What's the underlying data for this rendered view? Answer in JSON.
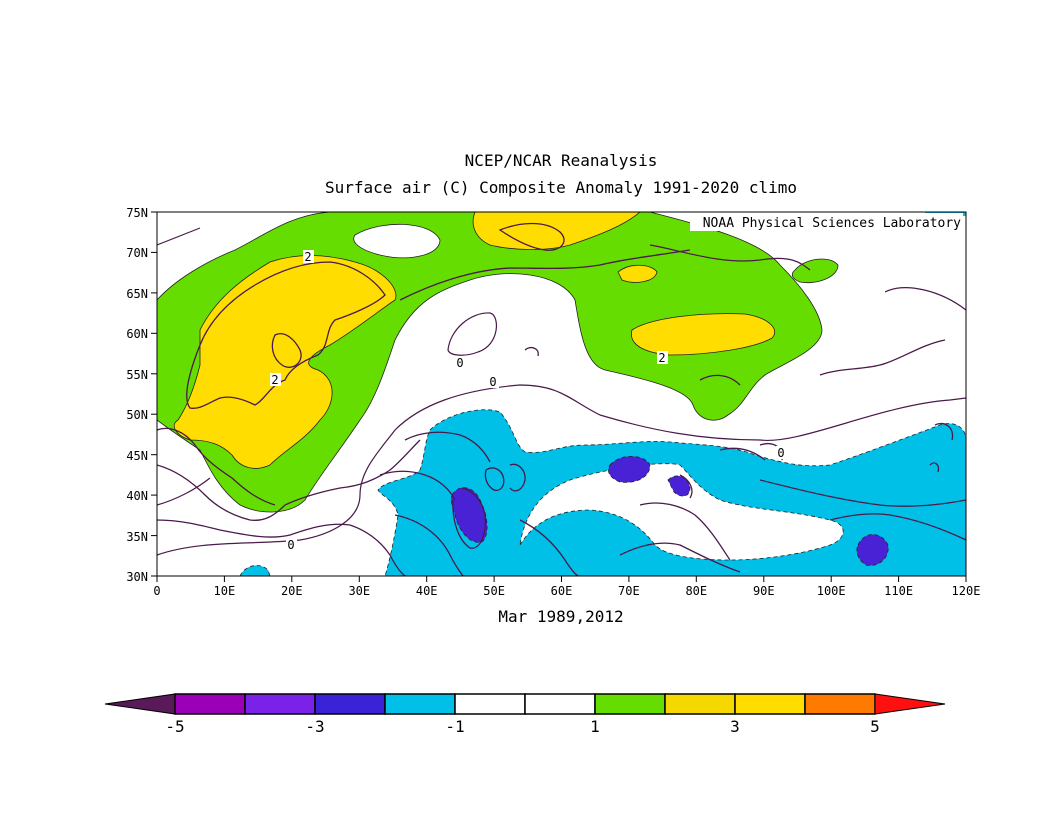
{
  "title_line1": "NCEP/NCAR Reanalysis",
  "title_line2": "Surface air (C) Composite Anomaly 1991-2020 climo",
  "credit": "NOAA Physical Sciences Laboratory",
  "subtitle": "Mar 1989,2012",
  "lat_ticks": [
    "75N",
    "70N",
    "65N",
    "60N",
    "55N",
    "50N",
    "45N",
    "40N",
    "35N",
    "30N"
  ],
  "lon_ticks": [
    "0",
    "10E",
    "20E",
    "30E",
    "40E",
    "50E",
    "60E",
    "70E",
    "80E",
    "90E",
    "100E",
    "110E",
    "120E"
  ],
  "contour_labels": [
    "2",
    "2",
    "2",
    "0",
    "0",
    "0",
    "0"
  ],
  "colorbar": {
    "labels": [
      "-5",
      "-3",
      "-1",
      "1",
      "3",
      "5"
    ],
    "colors": [
      "#9b00b8",
      "#7a22e8",
      "#3a22d6",
      "#00c0e8",
      "#ffffff",
      "#ffffff",
      "#66dd00",
      "#f5d800",
      "#ffdd00",
      "#ff7a00"
    ],
    "low_color": "#5a1a5a",
    "high_color": "#ff1010"
  },
  "colors": {
    "warm_green": "#66dd00",
    "warm_yellow": "#ffdd00",
    "cool_cyan": "#00c0e8",
    "cool_blue": "#4a22d6",
    "coastline": "#4a1a4a"
  }
}
